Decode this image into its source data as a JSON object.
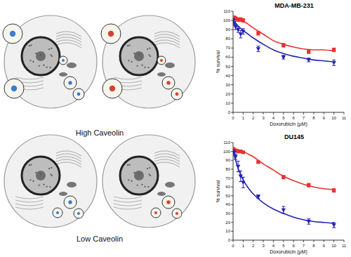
{
  "chart_data": [
    {
      "type": "scatter",
      "title": "MDA-MB-231",
      "x_label": "Doxorubicin (µM)",
      "y_label": "% survival",
      "xlim": [
        0,
        11
      ],
      "xticks": [
        0,
        1,
        2,
        3,
        4,
        5,
        6,
        7,
        8,
        9,
        10,
        11
      ],
      "ylim": [
        0,
        110
      ],
      "yticks": [
        0,
        10,
        20,
        30,
        40,
        50,
        60,
        70,
        80,
        90,
        100,
        110
      ],
      "x": [
        0,
        0.1,
        0.25,
        0.5,
        0.75,
        1,
        2.5,
        5,
        7.5,
        10
      ],
      "fit_x": [
        0,
        0.5,
        1,
        1.5,
        2,
        3,
        4,
        5,
        6,
        7,
        8,
        9,
        10
      ],
      "series": [
        {
          "color": "#e8312f",
          "marker": "square",
          "values": [
            102,
            103,
            102,
            101,
            101,
            100,
            86,
            73,
            66,
            68
          ],
          "errors": [
            2,
            2,
            2,
            2,
            2,
            2,
            2,
            2,
            2,
            2
          ],
          "fit": [
            102,
            101,
            99,
            96,
            92,
            85,
            78,
            74,
            71,
            69,
            68,
            68,
            67
          ]
        },
        {
          "color": "#2323b4",
          "marker": "triangle-down",
          "values": [
            100,
            97,
            93,
            90,
            85,
            88,
            69,
            60,
            57,
            54
          ],
          "errors": [
            2,
            2,
            3,
            3,
            4,
            3,
            3,
            2,
            2,
            3
          ],
          "fit": [
            100,
            94,
            89,
            85,
            81,
            74,
            68,
            64,
            61,
            59,
            57,
            56,
            55
          ]
        }
      ]
    },
    {
      "type": "scatter",
      "title": "DU145",
      "x_label": "Doxorubicin (µM)",
      "y_label": "% survival",
      "xlim": [
        0,
        11
      ],
      "xticks": [
        0,
        1,
        2,
        3,
        4,
        5,
        6,
        7,
        8,
        9,
        10,
        11
      ],
      "ylim": [
        0,
        110
      ],
      "yticks": [
        0,
        10,
        20,
        30,
        40,
        50,
        60,
        70,
        80,
        90,
        100,
        110
      ],
      "x": [
        0,
        0.1,
        0.25,
        0.5,
        0.75,
        1,
        2.5,
        5,
        7.5,
        10
      ],
      "fit_x": [
        0,
        0.5,
        1,
        1.5,
        2,
        3,
        4,
        5,
        6,
        7,
        8,
        9,
        10
      ],
      "series": [
        {
          "color": "#e8312f",
          "marker": "square",
          "values": [
            103,
            102,
            101,
            100,
            100,
            99,
            88,
            71,
            62,
            56
          ],
          "errors": [
            1,
            1,
            1,
            1,
            1,
            1,
            1,
            2,
            2,
            2
          ],
          "fit": [
            103,
            102,
            100,
            97,
            94,
            86,
            79,
            72,
            67,
            63,
            60,
            58,
            57
          ]
        },
        {
          "color": "#2323b4",
          "marker": "triangle-down",
          "values": [
            100,
            98,
            94,
            83,
            72,
            65,
            49,
            34,
            21,
            17
          ],
          "errors": [
            2,
            2,
            3,
            6,
            6,
            6,
            2,
            4,
            3,
            3
          ],
          "fit": [
            100,
            81,
            68,
            59,
            52,
            42,
            35,
            30,
            26,
            23,
            21,
            20,
            19
          ]
        }
      ]
    }
  ],
  "diagram": {
    "labels": [
      "High Caveolin",
      "Low Caveolin"
    ]
  }
}
